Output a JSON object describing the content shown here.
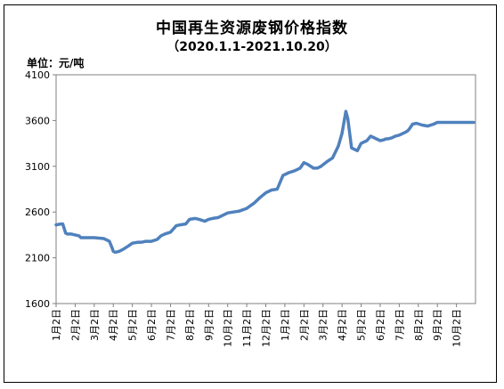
{
  "chart_data": {
    "type": "line",
    "title": "中国再生资源废钢价格指数",
    "subtitle": "（2020.1.1-2021.10.20）",
    "unit_label": "单位：元/吨",
    "xlabel": "",
    "ylabel": "",
    "ylim": [
      1600,
      4100
    ],
    "yticks": [
      1600,
      2100,
      2600,
      3100,
      3600,
      4100
    ],
    "grid": false,
    "legend": "none",
    "x_tick_labels": [
      "1月2日",
      "2月2日",
      "3月2日",
      "4月2日",
      "5月2日",
      "6月2日",
      "7月2日",
      "8月2日",
      "9月2日",
      "10月2日",
      "11月2日",
      "12月2日",
      "1月2日",
      "2月2日",
      "3月2日",
      "4月2日",
      "5月2日",
      "6月2日",
      "7月2日",
      "8月2日",
      "9月2日",
      "10月2日"
    ],
    "line_color": "#4F81BD",
    "series": [
      {
        "x": [
          0,
          0.25,
          0.35,
          0.5,
          0.6,
          0.8,
          1.2,
          1.3,
          1.6,
          2.0,
          2.5,
          2.8,
          2.95,
          3.0,
          3.1,
          3.3,
          3.5,
          3.8,
          4.0,
          4.3,
          4.5,
          4.7,
          5.0,
          5.3,
          5.5,
          5.7,
          6.0,
          6.3,
          6.5,
          6.8,
          7.0,
          7.3,
          7.5,
          7.8,
          8.0,
          8.2,
          8.5,
          8.7,
          9.0,
          9.3,
          9.6,
          10.0,
          10.4,
          10.7,
          11.0,
          11.3,
          11.6,
          11.9,
          12.2,
          12.5,
          12.8,
          13.0,
          13.2,
          13.5,
          13.7,
          13.9,
          14.2,
          14.5,
          14.8,
          15.0,
          15.2,
          15.3,
          15.5,
          15.8,
          16.0,
          16.3,
          16.5,
          16.8,
          17.0,
          17.2,
          17.3,
          17.4,
          17.6,
          17.7,
          17.8,
          18.0,
          18.2,
          18.4,
          18.5,
          18.7,
          18.9,
          19.2,
          19.5,
          19.8,
          20.0,
          20.3,
          20.5,
          20.8,
          21.0,
          21.3,
          21.6,
          21.9
        ],
        "values": [
          2460,
          2470,
          2470,
          2370,
          2360,
          2360,
          2340,
          2320,
          2320,
          2320,
          2310,
          2280,
          2200,
          2170,
          2160,
          2170,
          2190,
          2230,
          2260,
          2270,
          2270,
          2280,
          2280,
          2300,
          2340,
          2360,
          2380,
          2450,
          2460,
          2470,
          2520,
          2530,
          2520,
          2500,
          2520,
          2530,
          2540,
          2560,
          2590,
          2600,
          2610,
          2640,
          2700,
          2760,
          2810,
          2840,
          2850,
          3000,
          3030,
          3050,
          3080,
          3140,
          3120,
          3080,
          3080,
          3100,
          3150,
          3190,
          3320,
          3460,
          3700,
          3620,
          3300,
          3270,
          3350,
          3380,
          3430,
          3400,
          3380,
          3390,
          3400,
          3400,
          3410,
          3420,
          3430,
          3440,
          3460,
          3480,
          3500,
          3560,
          3570,
          3550,
          3540,
          3560,
          3580,
          3580,
          3580,
          3580,
          3580,
          3580,
          3580,
          3580
        ]
      }
    ]
  }
}
